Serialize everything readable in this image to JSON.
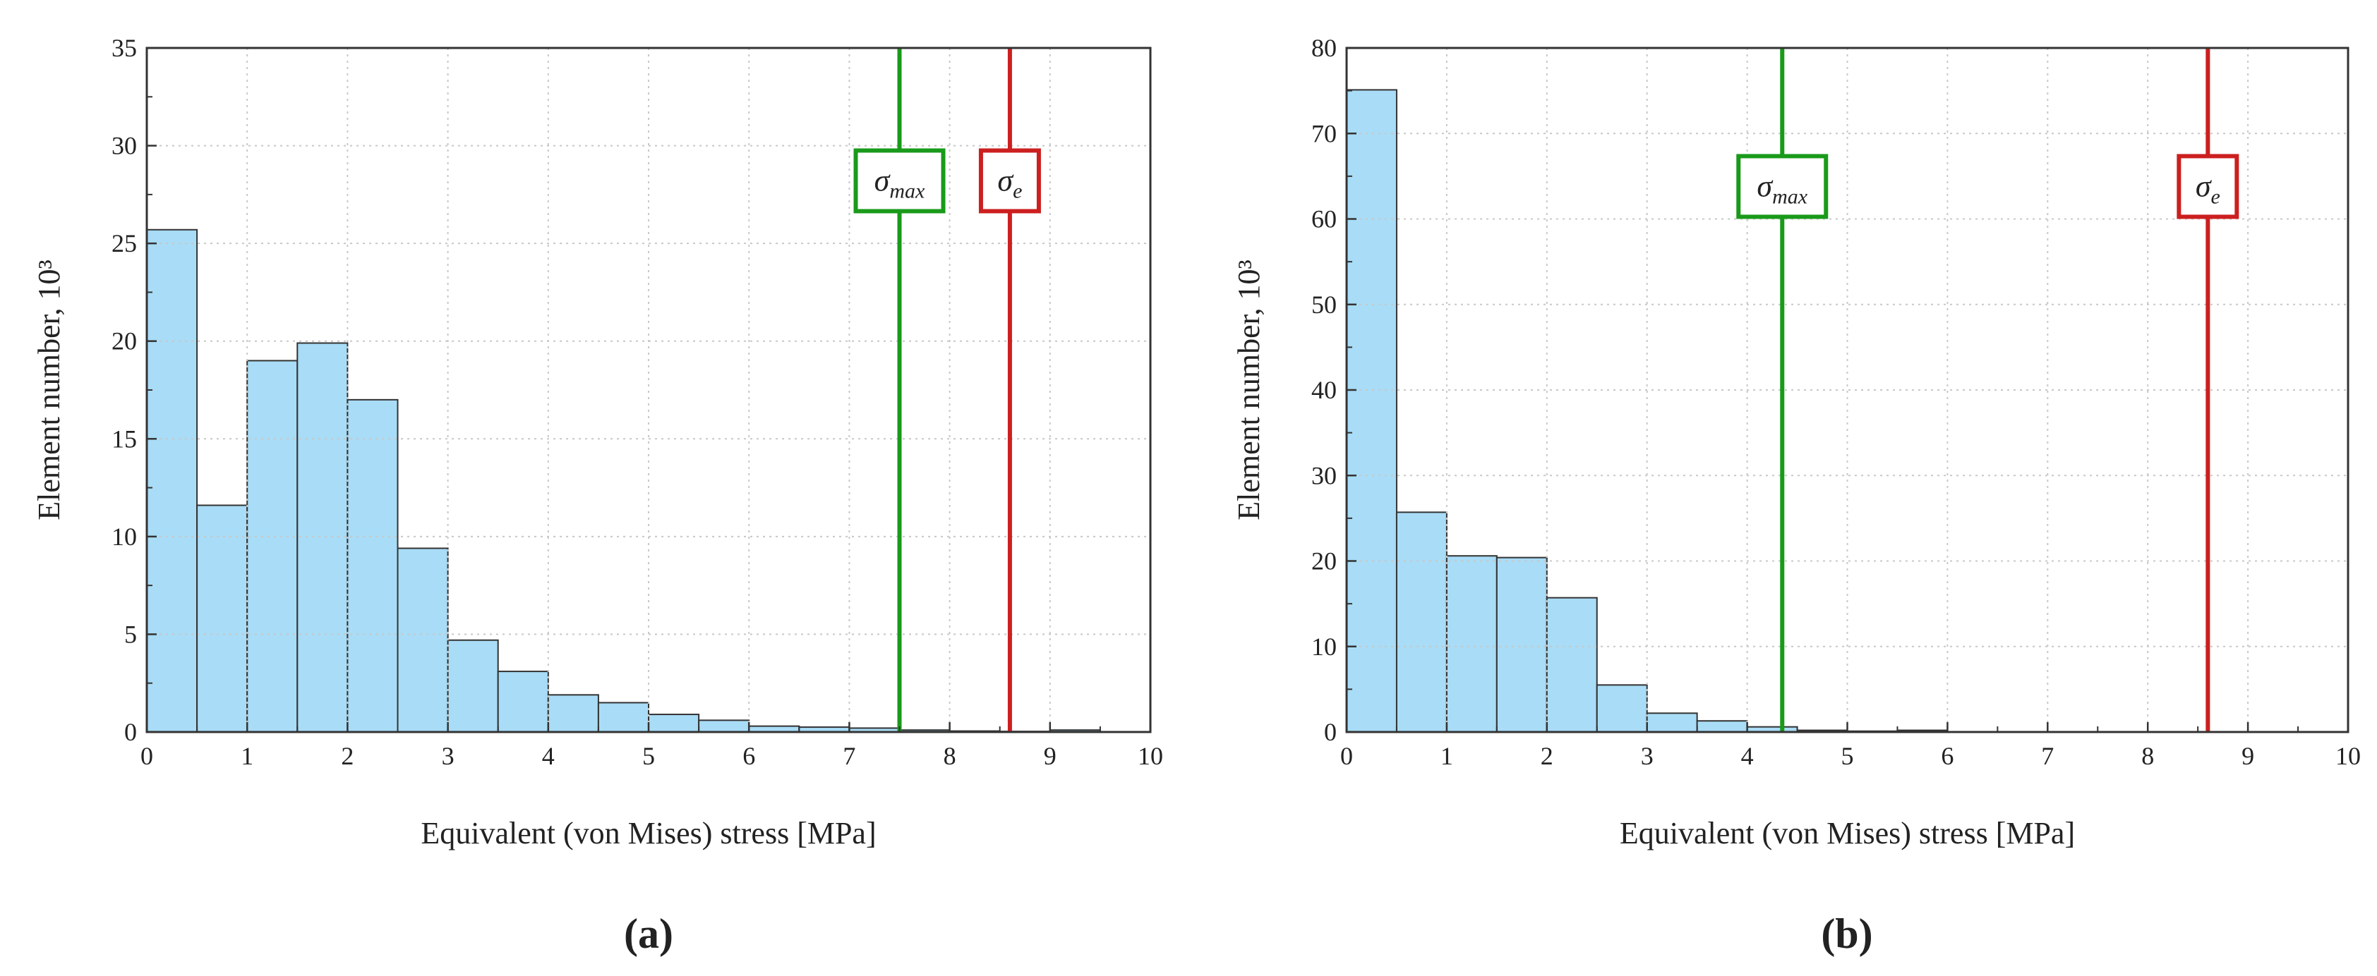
{
  "chart_data": [
    {
      "type": "bar",
      "panel_label": "(a)",
      "xlabel": "Equivalent (von Mises) stress [MPa]",
      "ylabel": "Element number, 10³",
      "xlim": [
        0,
        10
      ],
      "ylim": [
        0,
        35
      ],
      "x_ticks": [
        "0",
        "1",
        "2",
        "3",
        "4",
        "5",
        "6",
        "7",
        "8",
        "9",
        "10"
      ],
      "y_ticks": [
        "0",
        "5",
        "10",
        "15",
        "20",
        "25",
        "30",
        "35"
      ],
      "bin_width": 0.5,
      "bin_starts": [
        0,
        0.5,
        1,
        1.5,
        2,
        2.5,
        3,
        3.5,
        4,
        4.5,
        5,
        5.5,
        6,
        6.5,
        7,
        7.5,
        8,
        8.5,
        9,
        9.5
      ],
      "values": [
        25.7,
        11.6,
        19.0,
        19.9,
        17.0,
        9.4,
        4.7,
        3.1,
        1.9,
        1.5,
        0.9,
        0.6,
        0.3,
        0.25,
        0.2,
        0.1,
        0.05,
        0.03,
        0.1,
        0.0
      ],
      "grid": true,
      "bar_color": "#a9dcf6",
      "vlines": [
        {
          "x": 7.5,
          "symbol": "σ",
          "subscript": "max",
          "color": "#1a9a1a",
          "label_y": 28.2
        },
        {
          "x": 8.6,
          "symbol": "σ",
          "subscript": "e",
          "color": "#cc1f1f",
          "label_y": 28.2
        }
      ]
    },
    {
      "type": "bar",
      "panel_label": "(b)",
      "xlabel": "Equivalent (von Mises) stress [MPa]",
      "ylabel": "Element number, 10³",
      "xlim": [
        0,
        10
      ],
      "ylim": [
        0,
        80
      ],
      "x_ticks": [
        "0",
        "1",
        "2",
        "3",
        "4",
        "5",
        "6",
        "7",
        "8",
        "9",
        "10"
      ],
      "y_ticks": [
        "0",
        "10",
        "20",
        "30",
        "40",
        "50",
        "60",
        "70",
        "80"
      ],
      "bin_width": 0.5,
      "bin_starts": [
        0,
        0.5,
        1,
        1.5,
        2,
        2.5,
        3,
        3.5,
        4,
        4.5,
        5,
        5.5,
        6,
        6.5,
        7,
        7.5,
        8,
        8.5,
        9,
        9.5
      ],
      "values": [
        75.1,
        25.7,
        20.6,
        20.4,
        15.7,
        5.5,
        2.2,
        1.3,
        0.6,
        0.2,
        0.1,
        0.2,
        0.0,
        0.0,
        0.0,
        0.0,
        0.0,
        0.0,
        0.0,
        0.0
      ],
      "grid": true,
      "bar_color": "#a9dcf6",
      "vlines": [
        {
          "x": 4.35,
          "symbol": "σ",
          "subscript": "max",
          "color": "#1a9a1a",
          "label_y": 63.8
        },
        {
          "x": 8.6,
          "symbol": "σ",
          "subscript": "e",
          "color": "#cc1f1f",
          "label_y": 63.8
        }
      ]
    }
  ]
}
